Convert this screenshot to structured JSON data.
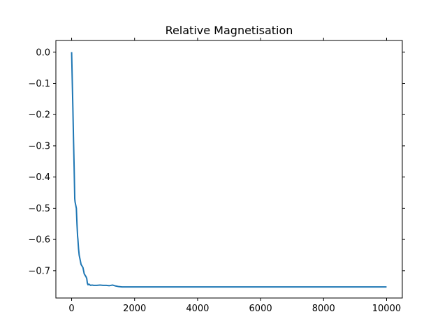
{
  "chart_data": {
    "type": "line",
    "title": "Relative Magnetisation",
    "xlabel": "",
    "ylabel": "",
    "xlim": [
      -500,
      10500
    ],
    "ylim": [
      -0.7875,
      0.0375
    ],
    "xticks": [
      0,
      2000,
      4000,
      6000,
      8000,
      10000
    ],
    "xtick_labels": [
      "0",
      "2000",
      "4000",
      "6000",
      "8000",
      "10000"
    ],
    "yticks": [
      0.0,
      -0.1,
      -0.2,
      -0.3,
      -0.4,
      -0.5,
      -0.6,
      -0.7
    ],
    "ytick_labels": [
      "0.0",
      "−0.1",
      "−0.2",
      "−0.3",
      "−0.4",
      "−0.5",
      "−0.6",
      "−0.7"
    ],
    "grid": false,
    "series": [
      {
        "color": "#1f77b4",
        "x": [
          0,
          20,
          40,
          60,
          80,
          100,
          110,
          130,
          150,
          170,
          190,
          200,
          220,
          240,
          260,
          280,
          300,
          330,
          360,
          380,
          400,
          430,
          460,
          480,
          500,
          520,
          550,
          600,
          650,
          700,
          800,
          900,
          1000,
          1100,
          1200,
          1300,
          1400,
          1500,
          1600,
          1800,
          2000,
          3000,
          4000,
          5000,
          6000,
          7000,
          8000,
          9000,
          10000
        ],
        "y": [
          0.0,
          -0.09,
          -0.18,
          -0.28,
          -0.37,
          -0.47,
          -0.48,
          -0.49,
          -0.5,
          -0.55,
          -0.59,
          -0.6,
          -0.63,
          -0.65,
          -0.66,
          -0.67,
          -0.68,
          -0.685,
          -0.69,
          -0.7,
          -0.71,
          -0.715,
          -0.72,
          -0.725,
          -0.74,
          -0.745,
          -0.743,
          -0.747,
          -0.746,
          -0.747,
          -0.747,
          -0.746,
          -0.747,
          -0.747,
          -0.748,
          -0.746,
          -0.749,
          -0.751,
          -0.752,
          -0.752,
          -0.752,
          -0.752,
          -0.752,
          -0.752,
          -0.752,
          -0.752,
          -0.752,
          -0.752,
          -0.752
        ]
      }
    ]
  }
}
